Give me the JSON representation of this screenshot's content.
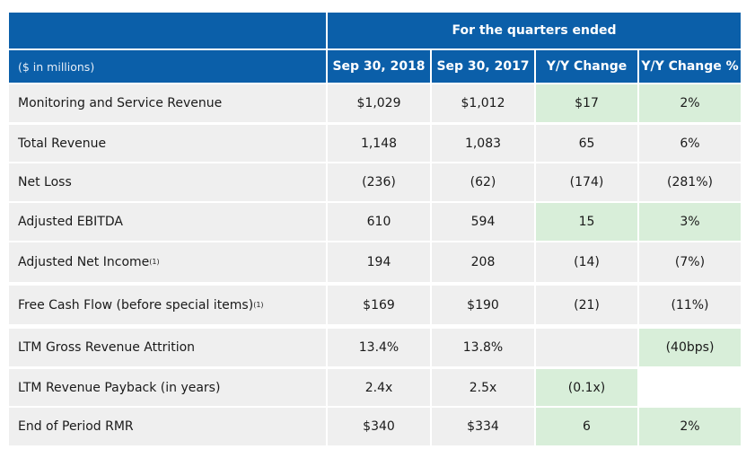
{
  "table": {
    "span_header": "For the quarters ended",
    "columns": [
      "($ in millions)",
      "Sep 30, 2018",
      "Sep 30, 2017",
      "Y/Y Change",
      "Y/Y Change %"
    ],
    "rows": [
      {
        "label": "Monitoring and Service Revenue",
        "sup": "",
        "cells": [
          "$1,029",
          "$1,012",
          "$17",
          "2%"
        ],
        "fill": [
          "g",
          "g",
          "green",
          "green"
        ]
      },
      {
        "label": "Total Revenue",
        "sup": "",
        "cells": [
          "1,148",
          "1,083",
          "65",
          "6%"
        ],
        "fill": [
          "g",
          "g",
          "g",
          "g"
        ]
      },
      {
        "label": "Net Loss",
        "sup": "",
        "cells": [
          "(236)",
          "(62)",
          "(174)",
          "(281%)"
        ],
        "fill": [
          "g",
          "g",
          "g",
          "g"
        ]
      },
      {
        "label": "Adjusted EBITDA",
        "sup": "",
        "cells": [
          "610",
          "594",
          "15",
          "3%"
        ],
        "fill": [
          "g",
          "g",
          "green",
          "green"
        ]
      },
      {
        "label": "Adjusted Net Income",
        "sup": "(1)",
        "cells": [
          "194",
          "208",
          "(14)",
          "(7%)"
        ],
        "fill": [
          "g",
          "g",
          "g",
          "g"
        ]
      },
      {
        "label": "Free Cash Flow (before special items)",
        "sup": "(1)",
        "cells": [
          "$169",
          "$190",
          "(21)",
          "(11%)"
        ],
        "fill": [
          "g",
          "g",
          "g",
          "g"
        ]
      },
      {
        "label": "LTM Gross Revenue Attrition",
        "sup": "",
        "cells": [
          "13.4%",
          "13.8%",
          "",
          "(40bps)"
        ],
        "fill": [
          "g",
          "g",
          "g",
          "green"
        ]
      },
      {
        "label": "LTM Revenue Payback (in years)",
        "sup": "",
        "cells": [
          "2.4x",
          "2.5x",
          "(0.1x)",
          ""
        ],
        "fill": [
          "g",
          "g",
          "green",
          "white"
        ]
      },
      {
        "label": "End of Period RMR",
        "sup": "",
        "cells": [
          "$340",
          "$334",
          "6",
          "2%"
        ],
        "fill": [
          "g",
          "g",
          "green",
          "green"
        ]
      }
    ],
    "colors": {
      "header_blue": "#0b5fa9",
      "row_gray": "#efefef",
      "highlight_green": "#d8eed9"
    }
  }
}
